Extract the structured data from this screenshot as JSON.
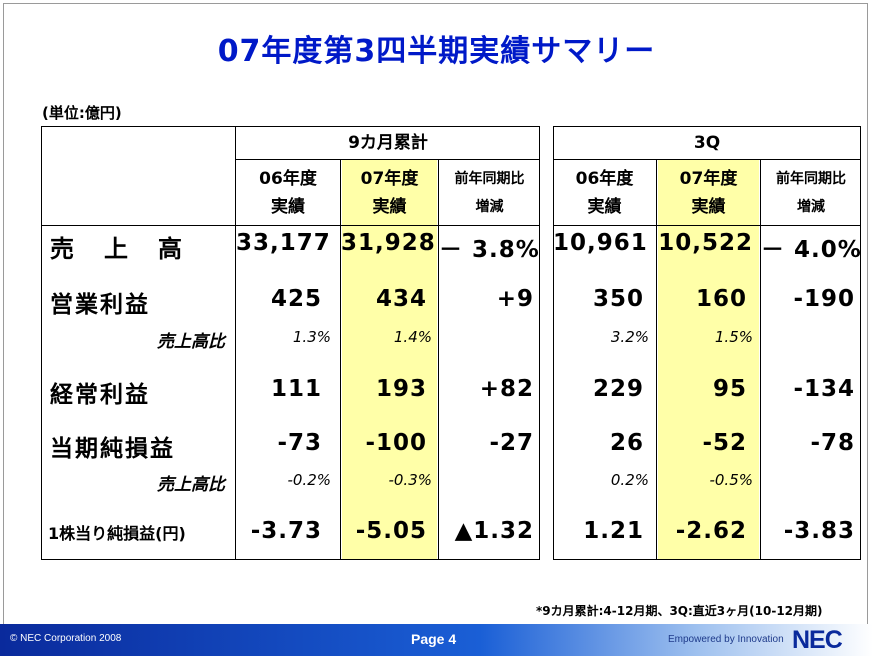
{
  "title": "07年度第3四半期実績サマリー",
  "unit_label": "(単位:億円)",
  "table": {
    "group_left": "9カ月累計",
    "group_right": "3Q",
    "col_prev_l1": "06年度",
    "col_prev_l2": "実績",
    "col_curr_l1": "07年度",
    "col_curr_l2": "実績",
    "col_yoy_l1": "前年同期比",
    "col_yoy_l2": "増減",
    "rows": [
      {
        "label": "売　上　高",
        "v": [
          "33,177",
          "31,928",
          "－ 3.8%",
          "10,961",
          "10,522",
          "－ 4.0%"
        ]
      },
      {
        "label": "営業利益",
        "v": [
          "425",
          "434",
          "+9",
          "350",
          "160",
          "-190"
        ]
      },
      {
        "label": "売上高比",
        "v": [
          "1.3%",
          "1.4%",
          "",
          "3.2%",
          "1.5%",
          ""
        ]
      },
      {
        "label": "経常利益",
        "v": [
          "111",
          "193",
          "+82",
          "229",
          "95",
          "-134"
        ]
      },
      {
        "label": "当期純損益",
        "v": [
          "-73",
          "-100",
          "-27",
          "26",
          "-52",
          "-78"
        ]
      },
      {
        "label": "売上高比",
        "v": [
          "-0.2%",
          "-0.3%",
          "",
          "0.2%",
          "-0.5%",
          ""
        ]
      },
      {
        "label": "1株当り純損益(円)",
        "v": [
          "-3.73",
          "-5.05",
          "▲1.32",
          "1.21",
          "-2.62",
          "-3.83"
        ]
      }
    ]
  },
  "footnote": "*9カ月累計:4-12月期、3Q:直近3ヶ月(10-12月期)",
  "footer": {
    "copyright": "© NEC Corporation 2008",
    "page": "Page 4",
    "tagline": "Empowered by Innovation",
    "logo": "NEC"
  }
}
